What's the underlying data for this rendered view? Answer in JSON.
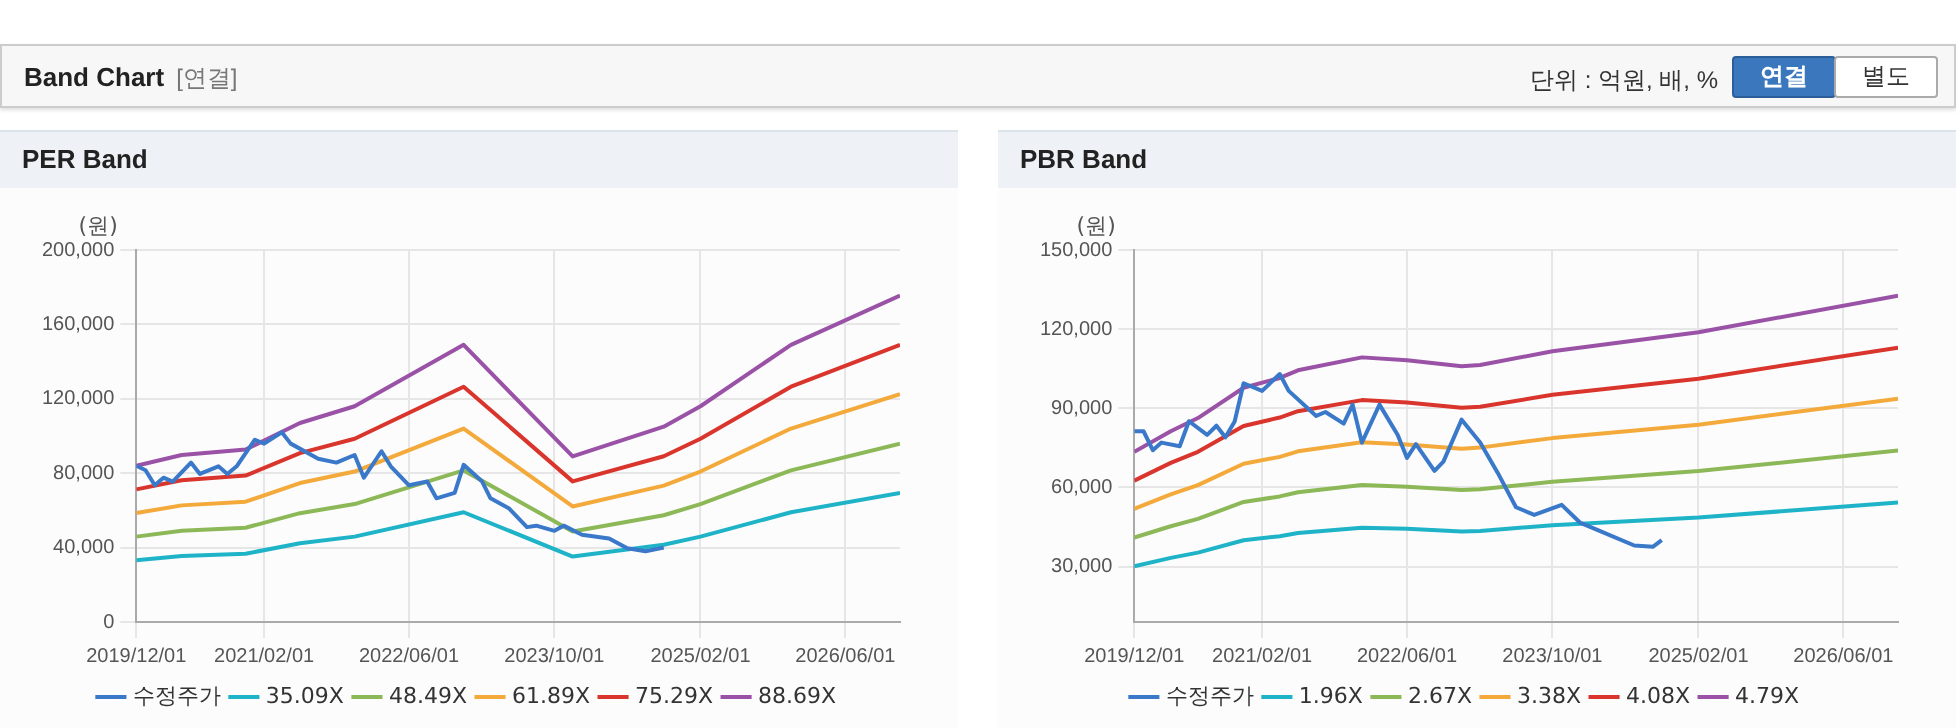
{
  "chart_data": [
    {
      "type": "other",
      "title": "Band Chart",
      "annotations": [
        "[연결]",
        "단위 : 억원, 배, %",
        "연결",
        "별도"
      ]
    },
    {
      "type": "line",
      "title": "PER Band",
      "ylabel": "(원)",
      "grid": true,
      "legend": "bottom",
      "xlim": [
        "2019-12-01",
        "2026-12-01"
      ],
      "xticks": [
        {
          "value": "2019-12-01",
          "label": "2019/12/01"
        },
        {
          "value": "2021-02-01",
          "label": "2021/02/01"
        },
        {
          "value": "2022-06-01",
          "label": "2022/06/01"
        },
        {
          "value": "2023-10-01",
          "label": "2023/10/01"
        },
        {
          "value": "2025-02-01",
          "label": "2025/02/01"
        },
        {
          "value": "2026-06-01",
          "label": "2026/06/01"
        }
      ],
      "ylim": [
        0,
        200000
      ],
      "yticks": [
        0,
        {
          "value": 40000,
          "label": "40,000"
        },
        {
          "value": 80000,
          "label": "80,000"
        },
        {
          "value": 120000,
          "label": "120,000"
        },
        {
          "value": 160000,
          "label": "160,000"
        },
        {
          "value": 200000,
          "label": "200,000"
        }
      ],
      "series": [
        {
          "name": "수정주가",
          "color": "#3a78c9",
          "x": [
            "2019-12",
            "2020-01",
            "2020-02",
            "2020-03",
            "2020-04",
            "2020-06",
            "2020-07",
            "2020-09",
            "2020-10",
            "2020-11",
            "2021-01",
            "2021-02",
            "2021-04",
            "2021-05",
            "2021-08",
            "2021-10",
            "2021-12",
            "2022-01",
            "2022-03",
            "2022-04",
            "2022-06",
            "2022-08",
            "2022-09",
            "2022-11",
            "2022-12",
            "2023-02",
            "2023-03",
            "2023-05",
            "2023-07",
            "2023-08",
            "2023-10",
            "2023-11",
            "2024-01",
            "2024-04",
            "2024-06",
            "2024-08",
            "2024-10"
          ],
          "values": [
            84000,
            81600,
            73500,
            77600,
            75500,
            85700,
            79600,
            83700,
            79600,
            83700,
            98000,
            95900,
            102000,
            95900,
            87800,
            85700,
            89800,
            77600,
            91800,
            83700,
            73500,
            75500,
            66500,
            69400,
            84500,
            75500,
            66500,
            61200,
            51000,
            51800,
            49000,
            51800,
            46900,
            44900,
            39600,
            38000,
            40000
          ]
        },
        {
          "name": "35.09X",
          "color": "#1fb3c8",
          "x": [
            "2019-12",
            "2020-05",
            "2020-12",
            "2021-06",
            "2021-12",
            "2022-12",
            "2023-12",
            "2024-10",
            "2025-02",
            "2025-12",
            "2026-12"
          ],
          "values": [
            33200,
            35500,
            36700,
            42300,
            45900,
            59000,
            35200,
            41500,
            45900,
            59000,
            69400
          ]
        },
        {
          "name": "48.49X",
          "color": "#8db857",
          "x": [
            "2019-12",
            "2020-05",
            "2020-12",
            "2021-06",
            "2021-12",
            "2022-12",
            "2023-12",
            "2024-10",
            "2025-02",
            "2025-12",
            "2026-12"
          ],
          "values": [
            45900,
            49100,
            50700,
            58500,
            63400,
            81500,
            48700,
            57400,
            63400,
            81500,
            95900
          ]
        },
        {
          "name": "61.89X",
          "color": "#f4a93b",
          "x": [
            "2019-12",
            "2020-05",
            "2020-12",
            "2021-06",
            "2021-12",
            "2022-12",
            "2023-12",
            "2024-10",
            "2025-02",
            "2025-12",
            "2026-12"
          ],
          "values": [
            58600,
            62700,
            64700,
            74700,
            80900,
            104000,
            62100,
            73300,
            80900,
            104000,
            122500
          ]
        },
        {
          "name": "75.29X",
          "color": "#d9352c",
          "x": [
            "2019-12",
            "2020-05",
            "2020-12",
            "2021-06",
            "2021-12",
            "2022-12",
            "2023-12",
            "2024-10",
            "2025-02",
            "2025-12",
            "2026-12"
          ],
          "values": [
            71300,
            76200,
            78700,
            90800,
            98500,
            126500,
            75600,
            89100,
            98500,
            126500,
            149000
          ]
        },
        {
          "name": "88.69X",
          "color": "#9a52a6",
          "x": [
            "2019-12",
            "2020-05",
            "2020-12",
            "2021-06",
            "2021-12",
            "2022-12",
            "2023-12",
            "2024-10",
            "2025-02",
            "2025-12",
            "2026-12"
          ],
          "values": [
            84000,
            89800,
            92700,
            107000,
            116000,
            149000,
            89000,
            105000,
            116000,
            149000,
            175500
          ]
        }
      ]
    },
    {
      "type": "line",
      "title": "PBR Band",
      "ylabel": "(원)",
      "grid": true,
      "legend": "bottom",
      "xlim": [
        "2019-12-01",
        "2026-12-01"
      ],
      "xticks": [
        {
          "value": "2019-12-01",
          "label": "2019/12/01"
        },
        {
          "value": "2021-02-01",
          "label": "2021/02/01"
        },
        {
          "value": "2022-06-01",
          "label": "2022/06/01"
        },
        {
          "value": "2023-10-01",
          "label": "2023/10/01"
        },
        {
          "value": "2025-02-01",
          "label": "2025/02/01"
        },
        {
          "value": "2026-06-01",
          "label": "2026/06/01"
        }
      ],
      "ylim": [
        9000,
        150000
      ],
      "yticks": [
        {
          "value": 30000,
          "label": "30,000"
        },
        {
          "value": 60000,
          "label": "60,000"
        },
        {
          "value": 90000,
          "label": "90,000"
        },
        {
          "value": 120000,
          "label": "120,000"
        },
        {
          "value": 150000,
          "label": "150,000"
        }
      ],
      "series": [
        {
          "name": "수정주가",
          "color": "#3a78c9",
          "x": [
            "2019-12",
            "2020-01",
            "2020-02",
            "2020-03",
            "2020-05",
            "2020-06",
            "2020-08",
            "2020-09",
            "2020-10",
            "2020-11",
            "2020-12",
            "2021-02",
            "2021-04",
            "2021-05",
            "2021-08",
            "2021-09",
            "2021-11",
            "2021-12",
            "2022-01",
            "2022-03",
            "2022-05",
            "2022-06",
            "2022-07",
            "2022-09",
            "2022-10",
            "2022-12",
            "2023-02",
            "2023-04",
            "2023-06",
            "2023-08",
            "2023-11",
            "2024-01",
            "2024-03",
            "2024-07",
            "2024-09",
            "2024-10"
          ],
          "values": [
            81300,
            81300,
            74100,
            77000,
            75600,
            85100,
            79900,
            83400,
            79000,
            85000,
            99500,
            96600,
            103000,
            96600,
            87100,
            88600,
            84200,
            91400,
            77000,
            91400,
            79900,
            71200,
            76400,
            66300,
            69800,
            85700,
            77000,
            65500,
            52500,
            49600,
            53400,
            46700,
            43800,
            38000,
            37500,
            40000
          ]
        },
        {
          "name": "1.96X",
          "color": "#1fb3c8",
          "x": [
            "2019-12",
            "2020-04",
            "2020-07",
            "2020-12",
            "2021-04",
            "2021-06",
            "2022-01",
            "2022-06",
            "2022-12",
            "2023-02",
            "2023-10",
            "2025-02",
            "2026-12"
          ],
          "values": [
            30100,
            33300,
            35300,
            40000,
            41500,
            42700,
            44700,
            44300,
            43300,
            43500,
            45700,
            48600,
            54300
          ]
        },
        {
          "name": "2.67X",
          "color": "#8db857",
          "x": [
            "2019-12",
            "2020-04",
            "2020-07",
            "2020-12",
            "2021-04",
            "2021-06",
            "2022-01",
            "2022-06",
            "2022-12",
            "2023-02",
            "2023-10",
            "2025-02",
            "2026-12"
          ],
          "values": [
            41000,
            45300,
            48100,
            54500,
            56600,
            58200,
            60900,
            60300,
            59000,
            59300,
            62200,
            66200,
            74000
          ]
        },
        {
          "name": "3.38X",
          "color": "#f4a93b",
          "x": [
            "2019-12",
            "2020-04",
            "2020-07",
            "2020-12",
            "2021-04",
            "2021-06",
            "2022-01",
            "2022-06",
            "2022-12",
            "2023-02",
            "2023-10",
            "2025-02",
            "2026-12"
          ],
          "values": [
            51900,
            57400,
            60900,
            69000,
            71600,
            73700,
            77100,
            76300,
            74700,
            75100,
            78700,
            83800,
            93600
          ]
        },
        {
          "name": "4.08X",
          "color": "#d9352c",
          "x": [
            "2019-12",
            "2020-04",
            "2020-07",
            "2020-12",
            "2021-04",
            "2021-06",
            "2022-01",
            "2022-06",
            "2022-12",
            "2023-02",
            "2023-10",
            "2025-02",
            "2026-12"
          ],
          "values": [
            62600,
            69300,
            73500,
            83300,
            86500,
            88900,
            93100,
            92200,
            90200,
            90600,
            95100,
            101200,
            113000
          ]
        },
        {
          "name": "4.79X",
          "color": "#9a52a6",
          "x": [
            "2019-12",
            "2020-04",
            "2020-07",
            "2020-12",
            "2021-04",
            "2021-06",
            "2022-01",
            "2022-06",
            "2022-12",
            "2023-02",
            "2023-10",
            "2025-02",
            "2026-12"
          ],
          "values": [
            73500,
            81300,
            86300,
            97800,
            101500,
            104400,
            109300,
            108200,
            105900,
            106400,
            111600,
            118800,
            132700
          ]
        }
      ]
    }
  ]
}
